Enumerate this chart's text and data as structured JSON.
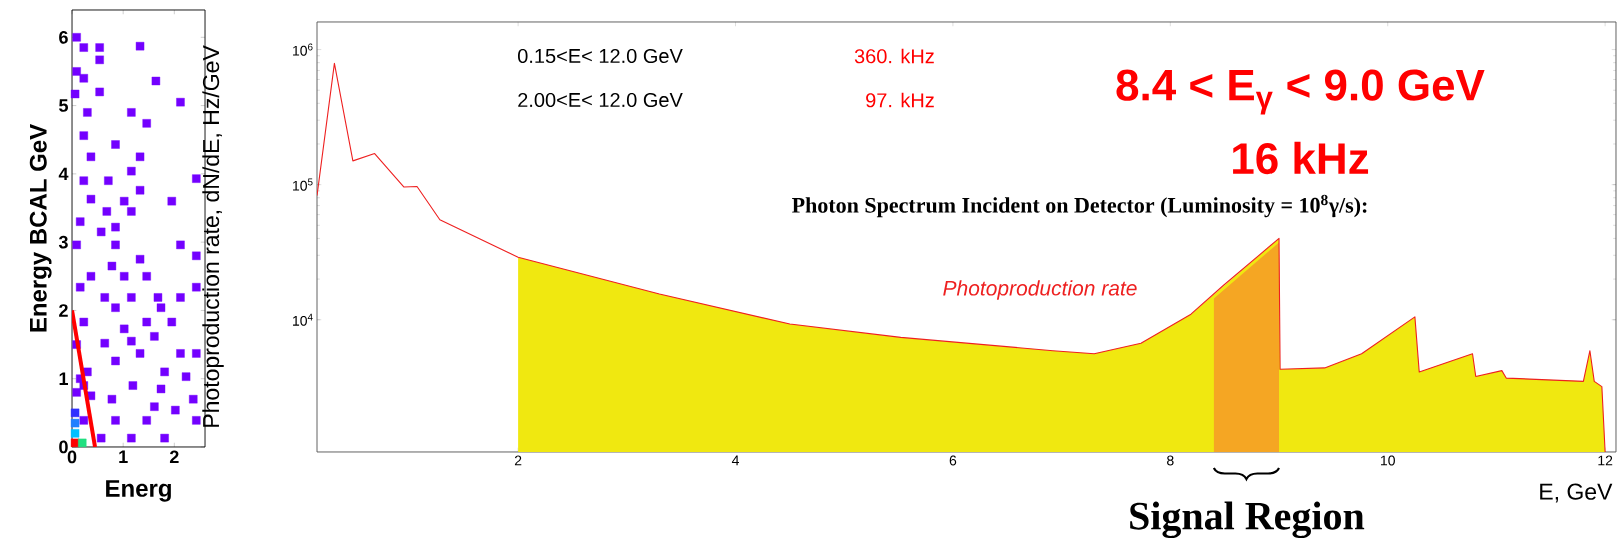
{
  "chart_data": [
    {
      "type": "scatter",
      "xlabel": "Energ",
      "ylabel": "Energy BCAL GeV",
      "xlim": [
        0,
        2.6
      ],
      "ylim": [
        0,
        6.4
      ],
      "xticks": [
        0,
        1,
        2
      ],
      "yticks": [
        0,
        1,
        2,
        3,
        4,
        5,
        6
      ],
      "marker": "square",
      "series": [
        {
          "color": "#7300ff",
          "x": [
            0.09,
            0.23,
            0.54,
            1.33,
            0.09,
            0.23,
            0.54,
            1.64,
            0.54,
            0.06,
            0.3,
            1.16,
            1.46,
            2.12,
            0.23,
            0.85,
            0.37,
            1.33,
            0.23,
            0.71,
            1.16,
            2.43,
            1.33,
            0.37,
            1.02,
            1.95,
            0.68,
            1.16,
            0.16,
            0.85,
            0.57,
            0.09,
            0.85,
            2.12,
            2.43,
            1.33,
            0.78,
            0.37,
            1.02,
            1.46,
            2.43,
            0.16,
            0.64,
            1.16,
            1.68,
            2.12,
            0.85,
            1.74,
            0.23,
            1.46,
            1.95,
            1.02,
            0.64,
            1.61,
            1.16,
            1.33,
            2.12,
            2.43,
            0.85,
            0.3,
            1.81,
            2.23,
            1.19,
            1.74,
            0.37,
            0.78,
            2.37,
            1.61,
            2.02,
            0.23,
            0.85,
            1.46,
            2.43,
            0.57,
            1.16,
            1.81,
            0.09,
            0.16,
            0.09,
            0.23
          ],
          "values": [
            6.0,
            5.85,
            5.85,
            5.87,
            5.5,
            5.4,
            5.67,
            5.36,
            5.2,
            5.17,
            4.9,
            4.9,
            4.74,
            5.05,
            4.56,
            4.43,
            4.25,
            4.25,
            3.9,
            3.9,
            4.04,
            3.93,
            3.76,
            3.63,
            3.6,
            3.6,
            3.45,
            3.45,
            3.3,
            3.22,
            3.15,
            2.96,
            2.96,
            2.96,
            2.8,
            2.75,
            2.65,
            2.5,
            2.5,
            2.5,
            2.34,
            2.34,
            2.19,
            2.19,
            2.19,
            2.19,
            2.04,
            2.04,
            1.83,
            1.83,
            1.83,
            1.73,
            1.52,
            1.62,
            1.55,
            1.37,
            1.37,
            1.37,
            1.26,
            1.1,
            1.1,
            1.03,
            0.9,
            0.85,
            0.75,
            0.7,
            0.7,
            0.59,
            0.54,
            0.39,
            0.39,
            0.39,
            0.39,
            0.13,
            0.13,
            0.13,
            1.5,
            1.0,
            0.8,
            0.9
          ]
        },
        {
          "colors": [
            "#ff0000",
            "#20e080",
            "#00c0ff",
            "#2080ff",
            "#3030ff"
          ],
          "x": [
            0.06,
            0.2,
            0.06,
            0.06,
            0.06
          ],
          "values": [
            0.06,
            0.06,
            0.2,
            0.35,
            0.5
          ]
        },
        {
          "type": "line",
          "color": "#ff0000",
          "marker": "none",
          "x": [
            0,
            0.45
          ],
          "values": [
            2,
            0
          ]
        }
      ]
    },
    {
      "type": "line",
      "title": "Photon Spectrum Incident on Detector (Luminosity = 10$^{8}$γ/s):",
      "xlabel": "E, GeV",
      "ylabel": "Photoproduction rate, dN/dE, Hz/GeV",
      "log": "y",
      "xlim": [
        0.15,
        12.1
      ],
      "ylim": [
        1050,
        1600000
      ],
      "xticks": [
        2,
        4,
        6,
        8,
        10,
        12
      ],
      "yticks": [
        {
          "value": 10000,
          "label": "10$^{4}$"
        },
        {
          "value": 100000,
          "label": "10$^{5}$"
        },
        {
          "value": 1000000,
          "label": "10$^{6}$"
        }
      ],
      "annotations": [
        "0.15<E< 12.0 GeV",
        "360. kHz",
        "2.00<E< 12.0 GeV",
        "97. kHz",
        "8.4 < E$_{γ}$ < 9.0 GeV",
        "16 kHz"
      ],
      "bands": [
        {
          "axis": "x",
          "from": 8.4,
          "to": 9.0,
          "label": "Signal Region",
          "color": "#f5a623"
        }
      ],
      "series": [
        {
          "type": "area",
          "color": "#f0e810",
          "x": [
            2.0,
            3.3,
            4.5,
            5.52,
            6.92,
            7.3,
            7.73,
            8.19,
            8.49,
            9.0,
            9.01,
            9.42,
            9.76,
            10.25,
            10.29,
            10.78,
            10.81,
            11.05,
            11.09,
            11.8,
            11.86,
            11.9,
            11.97,
            12.0
          ],
          "values": [
            29000,
            15500,
            9300,
            7400,
            5900,
            5600,
            6700,
            11000,
            null,
            40000,
            4300,
            4400,
            5600,
            10500,
            4100,
            5600,
            3800,
            4200,
            3700,
            3500,
            5900,
            3500,
            3200,
            1050
          ]
        },
        {
          "name": "Photoproduction rate",
          "color": "#ee2020",
          "line_style": "solid",
          "x": [
            0.15,
            0.31,
            0.48,
            0.68,
            0.95,
            1.07,
            1.28,
            2.0,
            3.3,
            4.5,
            5.52,
            6.92,
            7.3,
            7.73,
            8.19,
            8.49,
            9.0,
            9.01,
            9.42,
            9.76,
            10.25,
            10.29,
            10.78,
            10.81,
            11.05,
            11.09,
            11.8,
            11.86,
            11.9,
            11.97,
            12.0
          ],
          "values": [
            83000,
            790000,
            150000,
            170000,
            96000,
            97000,
            55000,
            29000,
            15500,
            9300,
            7400,
            5900,
            5600,
            6700,
            11000,
            18000,
            40000,
            4300,
            4400,
            5600,
            10500,
            4100,
            5600,
            3800,
            4200,
            3700,
            3500,
            5900,
            3500,
            3200,
            1050
          ]
        }
      ]
    }
  ]
}
